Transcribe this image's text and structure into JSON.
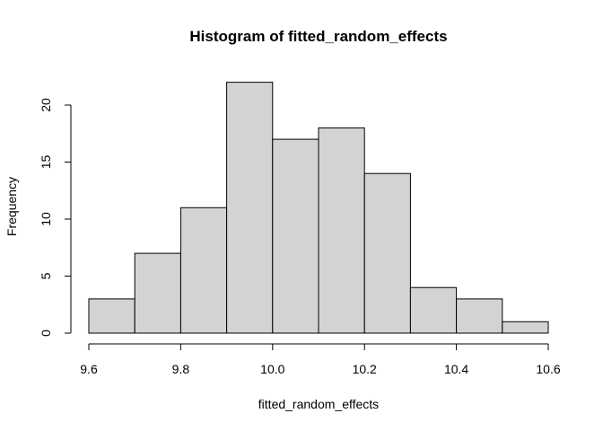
{
  "chart_data": {
    "type": "bar",
    "title": "Histogram of fitted_random_effects",
    "xlabel": "fitted_random_effects",
    "ylabel": "Frequency",
    "bin_edges": [
      9.6,
      9.7,
      9.8,
      9.9,
      10.0,
      10.1,
      10.2,
      10.3,
      10.4,
      10.5,
      10.6
    ],
    "values": [
      3,
      7,
      11,
      22,
      17,
      18,
      14,
      4,
      3,
      1
    ],
    "xlim": [
      9.6,
      10.6
    ],
    "ylim": [
      0,
      22
    ],
    "x_ticks": [
      9.6,
      9.8,
      10.0,
      10.2,
      10.4,
      10.6
    ],
    "x_tick_labels": [
      "9.6",
      "9.8",
      "10.0",
      "10.2",
      "10.4",
      "10.6"
    ],
    "y_ticks": [
      0,
      5,
      10,
      15,
      20
    ],
    "y_tick_labels": [
      "0",
      "5",
      "10",
      "15",
      "20"
    ],
    "bar_fill": "#d3d3d3",
    "bar_stroke": "#000000",
    "grid": false
  }
}
